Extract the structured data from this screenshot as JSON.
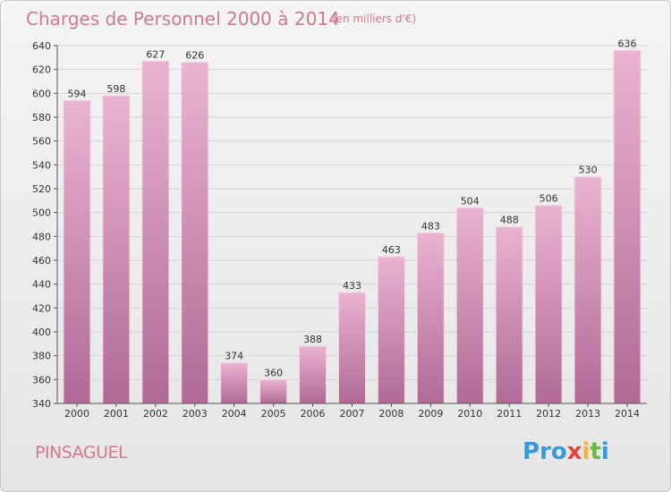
{
  "header": {
    "title": "Charges de Personnel 2000 à 2014",
    "subtitle": "(en milliers d'€)"
  },
  "footer": {
    "commune": "PINSAGUEL",
    "logo_text": "Proxiti",
    "logo_letters": [
      {
        "ch": "P",
        "color": "#3a9ad9"
      },
      {
        "ch": "r",
        "color": "#3a9ad9"
      },
      {
        "ch": "o",
        "color": "#3a9ad9"
      },
      {
        "ch": "x",
        "color": "#e8403a"
      },
      {
        "ch": "i",
        "color": "#f2b530"
      },
      {
        "ch": "t",
        "color": "#6bb543"
      },
      {
        "ch": "i",
        "color": "#3a9ad9"
      }
    ]
  },
  "colors": {
    "bar_top": "#eab3d1",
    "bar_bottom": "#b06a95",
    "text_accent": "#d07a8a",
    "grid": "#d4d4d4"
  },
  "chart_data": {
    "type": "bar",
    "categories": [
      "2000",
      "2001",
      "2002",
      "2003",
      "2004",
      "2005",
      "2006",
      "2007",
      "2008",
      "2009",
      "2010",
      "2011",
      "2012",
      "2013",
      "2014"
    ],
    "values": [
      594,
      598,
      627,
      626,
      374,
      360,
      388,
      433,
      463,
      483,
      504,
      488,
      506,
      530,
      636
    ],
    "ylim": [
      340,
      640
    ],
    "yticks": [
      340,
      360,
      380,
      400,
      420,
      440,
      460,
      480,
      500,
      520,
      540,
      560,
      580,
      600,
      620,
      640
    ],
    "grid": true
  }
}
